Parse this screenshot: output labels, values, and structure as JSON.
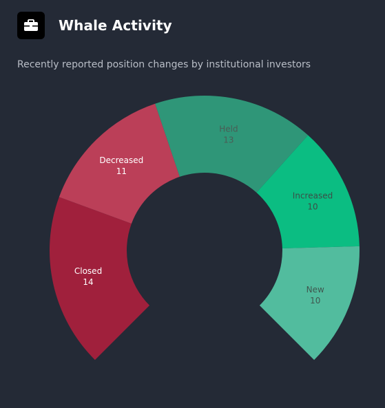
{
  "header": {
    "title": "Whale Activity",
    "icon": "briefcase-icon",
    "subtitle": "Recently reported position changes by institutional investors"
  },
  "chart_data": {
    "type": "pie",
    "variant": "donut-arc",
    "categories": [
      "Closed",
      "Decreased",
      "Held",
      "Increased",
      "New"
    ],
    "values": [
      14,
      11,
      13,
      10,
      10
    ],
    "colors": [
      "#a0203c",
      "#bb3f58",
      "#2f9678",
      "#0bbd82",
      "#52bc9e"
    ],
    "label_colors": [
      "#ffffff",
      "#ffffff",
      "#4a5c55",
      "#3b4e47",
      "#3f574f"
    ],
    "legend": "none"
  }
}
